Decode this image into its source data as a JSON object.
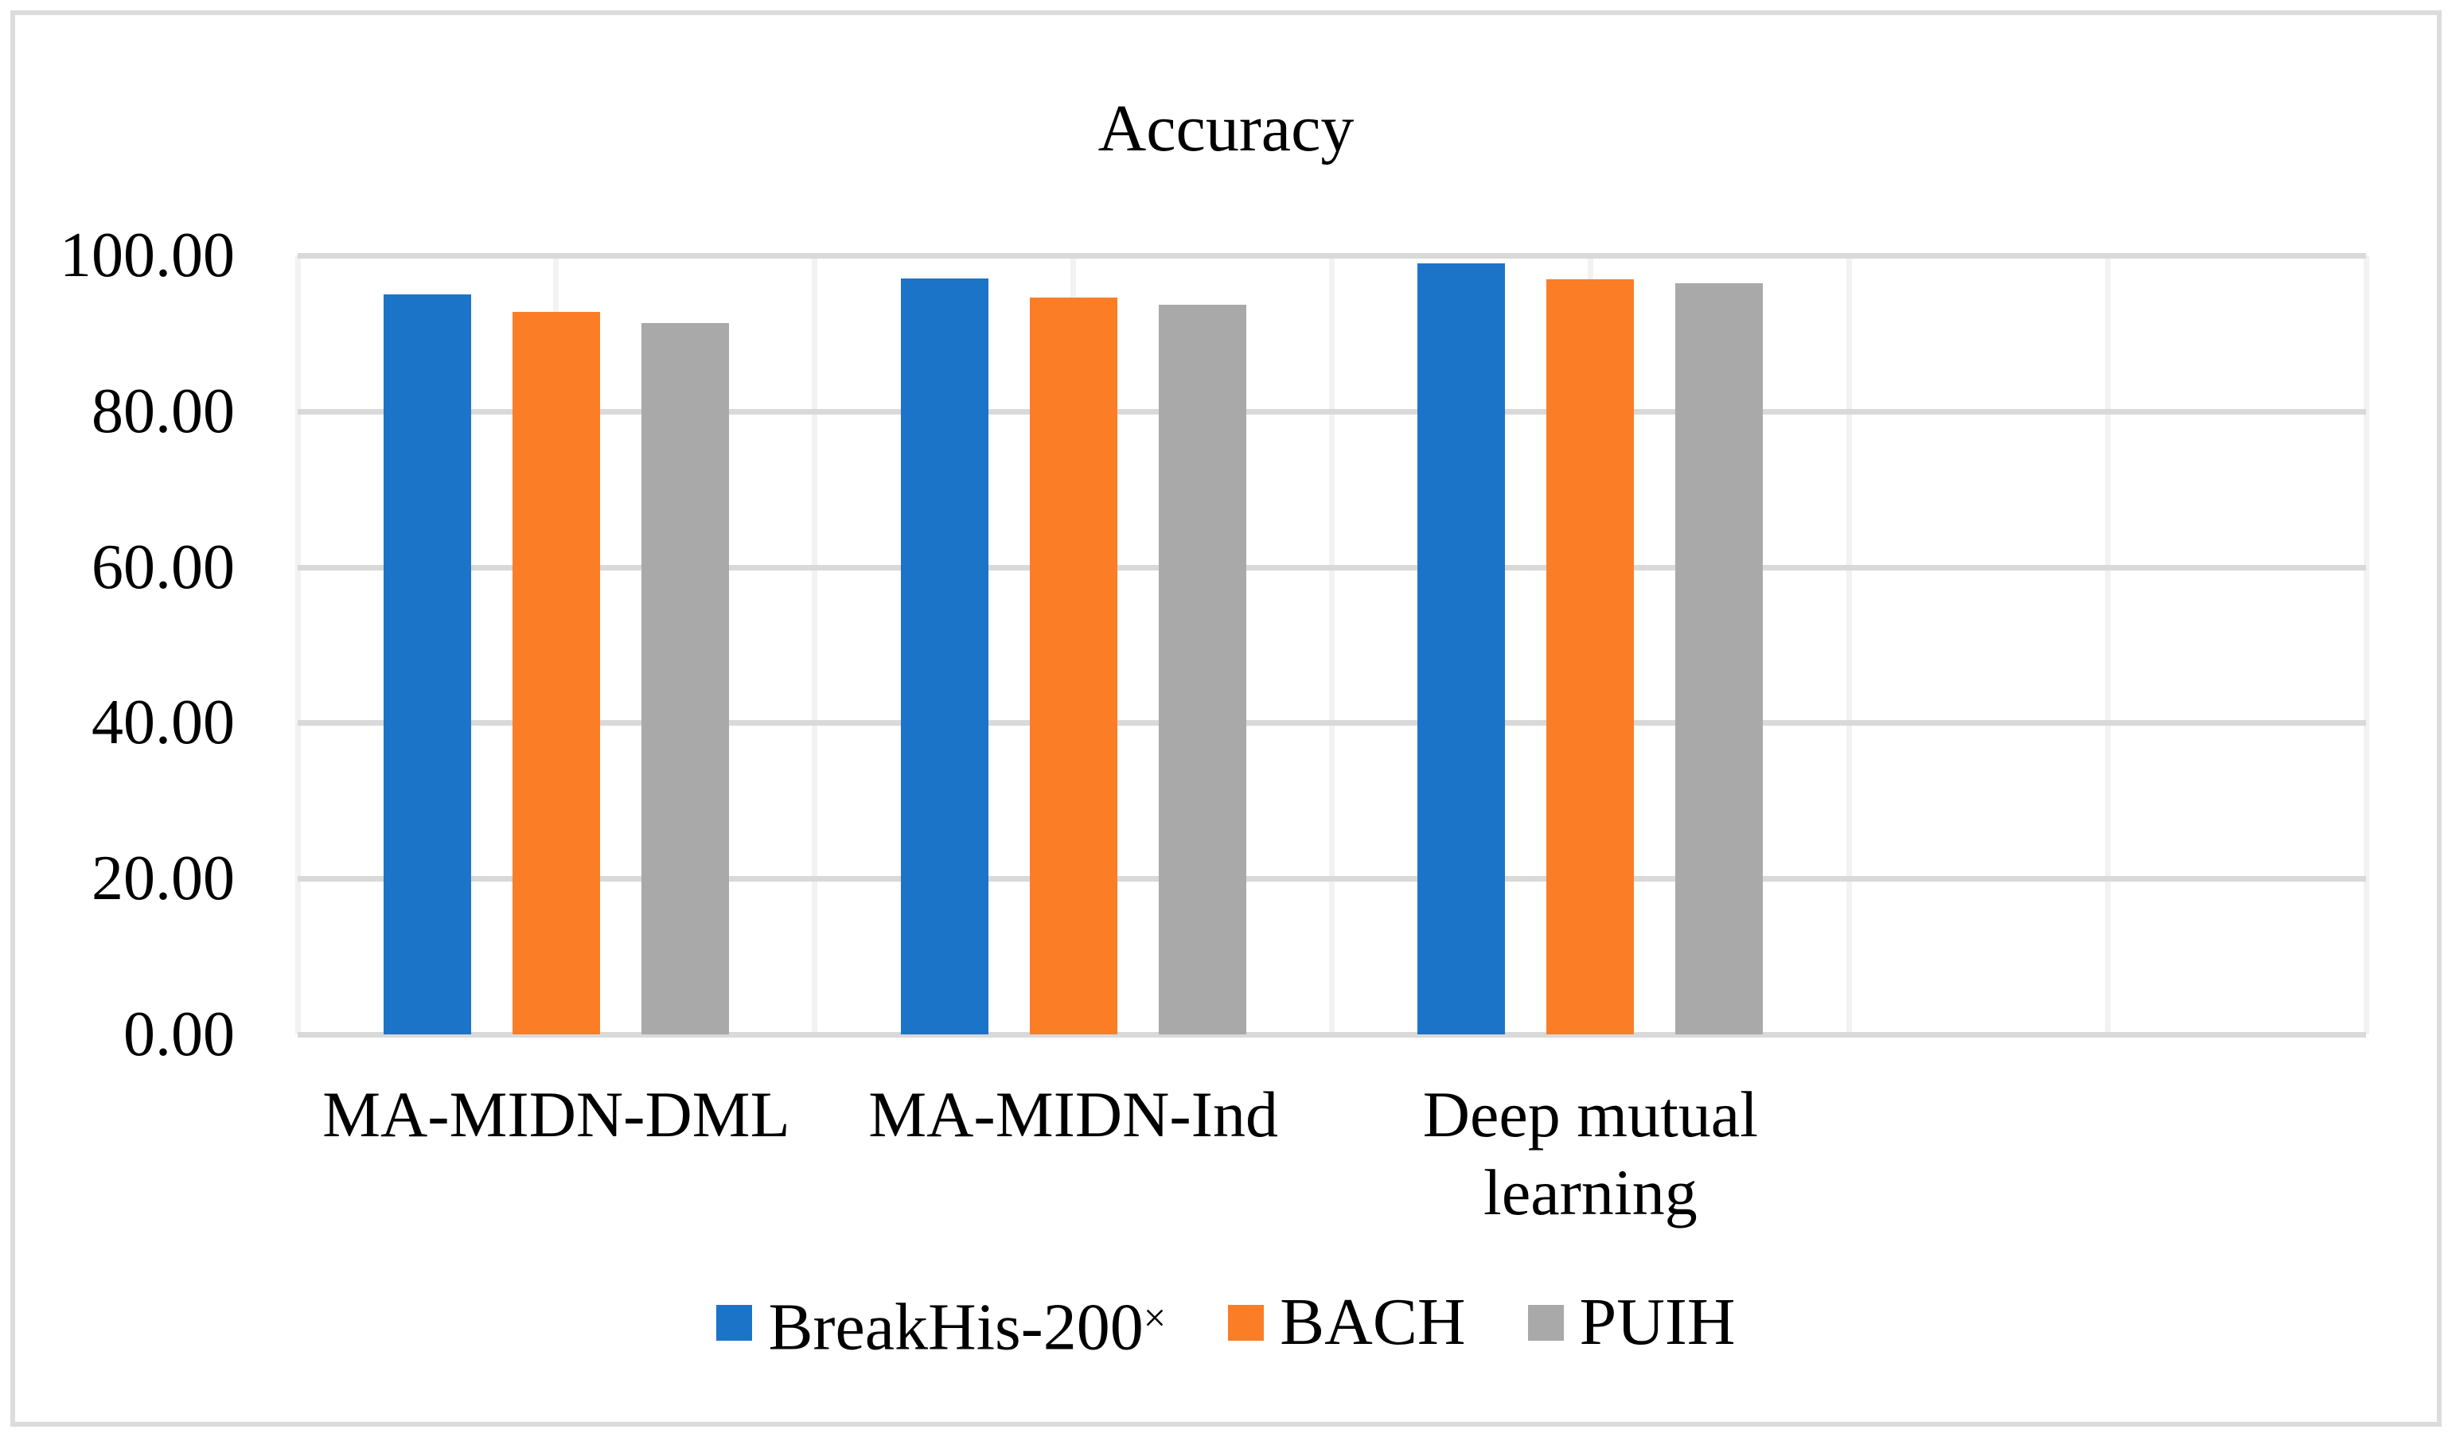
{
  "title": "Accuracy",
  "colors": {
    "series_blue": "#1C74C8",
    "series_orange": "#FB7D26",
    "series_gray": "#A9A9A9",
    "h_gridline": "#D9D9D9",
    "v_gridline": "#F2F2F2",
    "frame_border": "#DCDCDC",
    "text": "#000000",
    "background": "#FFFFFF"
  },
  "y_axis": {
    "tick_labels": [
      "100.00",
      "80.00",
      "60.00",
      "40.00",
      "20.00",
      "0.00"
    ]
  },
  "x_axis": {
    "category_labels": [
      "MA-MIDN-DML",
      "MA-MIDN-Ind",
      "Deep mutual learning"
    ]
  },
  "legend": {
    "items": [
      {
        "label": "BreakHis-200",
        "suffix": "×",
        "series_index": 0
      },
      {
        "label": "BACH",
        "suffix": "",
        "series_index": 1
      },
      {
        "label": "PUIH",
        "suffix": "",
        "series_index": 2
      }
    ]
  },
  "chart_data": {
    "type": "bar",
    "title": "Accuracy",
    "categories": [
      "MA-MIDN-DML",
      "MA-MIDN-Ind",
      "Deep mutual learning"
    ],
    "series": [
      {
        "name": "BreakHis-200×",
        "color": "#1C74C8",
        "values": [
          95.0,
          97.0,
          99.0
        ]
      },
      {
        "name": "BACH",
        "color": "#FB7D26",
        "values": [
          92.7,
          94.6,
          96.9
        ]
      },
      {
        "name": "PUIH",
        "color": "#A9A9A9",
        "values": [
          91.3,
          93.7,
          96.4
        ]
      }
    ],
    "ylabel": "",
    "xlabel": "",
    "ylim": [
      0,
      100
    ],
    "yticks": [
      0,
      20,
      40,
      60,
      80,
      100
    ],
    "ytick_format": "0.00",
    "grid": true,
    "vertical_gridlines_count": 9,
    "legend_position": "bottom"
  }
}
